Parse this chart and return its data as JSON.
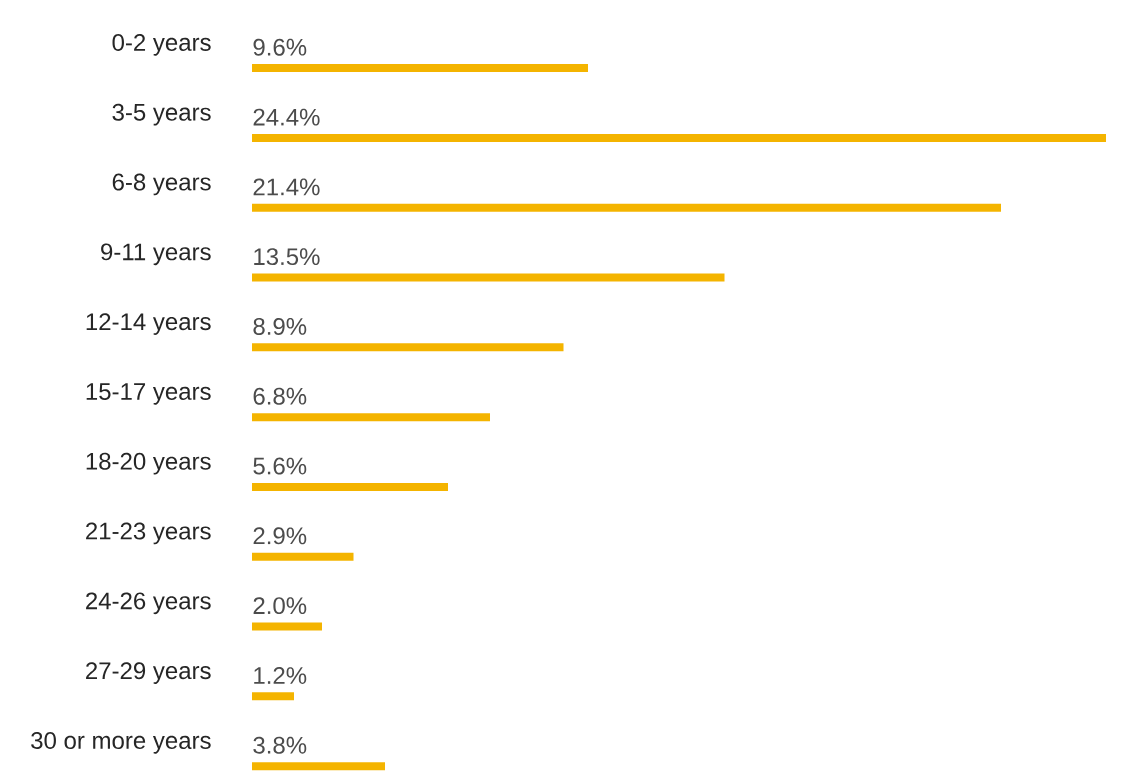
{
  "chart_data": {
    "type": "bar",
    "orientation": "horizontal",
    "color": "#f4b400",
    "categories": [
      "0-2 years",
      "3-5 years",
      "6-8 years",
      "9-11 years",
      "12-14 years",
      "15-17 years",
      "18-20 years",
      "21-23 years",
      "24-26 years",
      "27-29 years",
      "30 or more years"
    ],
    "values": [
      9.6,
      24.4,
      21.4,
      13.5,
      8.9,
      6.8,
      5.6,
      2.9,
      2.0,
      1.2,
      3.8
    ],
    "value_labels": [
      "9.6%",
      "24.4%",
      "21.4%",
      "13.5%",
      "8.9%",
      "6.8%",
      "5.6%",
      "2.9%",
      "2.0%",
      "1.2%",
      "3.8%"
    ]
  }
}
